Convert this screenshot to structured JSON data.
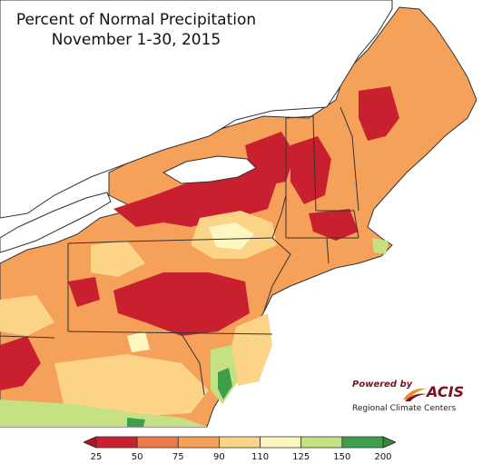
{
  "title": {
    "line1": "Percent of Normal Precipitation",
    "line2": "November 1-30, 2015"
  },
  "credit": {
    "powered_by": "Powered by",
    "brand": "ACIS",
    "org": "Regional Climate Centers"
  },
  "legend": {
    "ticks": [
      "25",
      "50",
      "75",
      "90",
      "110",
      "125",
      "150",
      "200"
    ],
    "colors": [
      "#c8202e",
      "#ee7a4c",
      "#f5a15a",
      "#fbd488",
      "#fdf6c0",
      "#c5e184",
      "#3f9e4a"
    ],
    "arrow_low_color": "#b3121f",
    "arrow_high_color": "#2f8a3b"
  },
  "map_colors": {
    "water": "#ffffff",
    "dry_extreme": "#c8202e",
    "dry": "#ee7a4c",
    "below": "#f5a15a",
    "near_low": "#fbd488",
    "near": "#fdf6c0",
    "above": "#c5e184",
    "wet": "#3f9e4a",
    "border": "#333333"
  }
}
